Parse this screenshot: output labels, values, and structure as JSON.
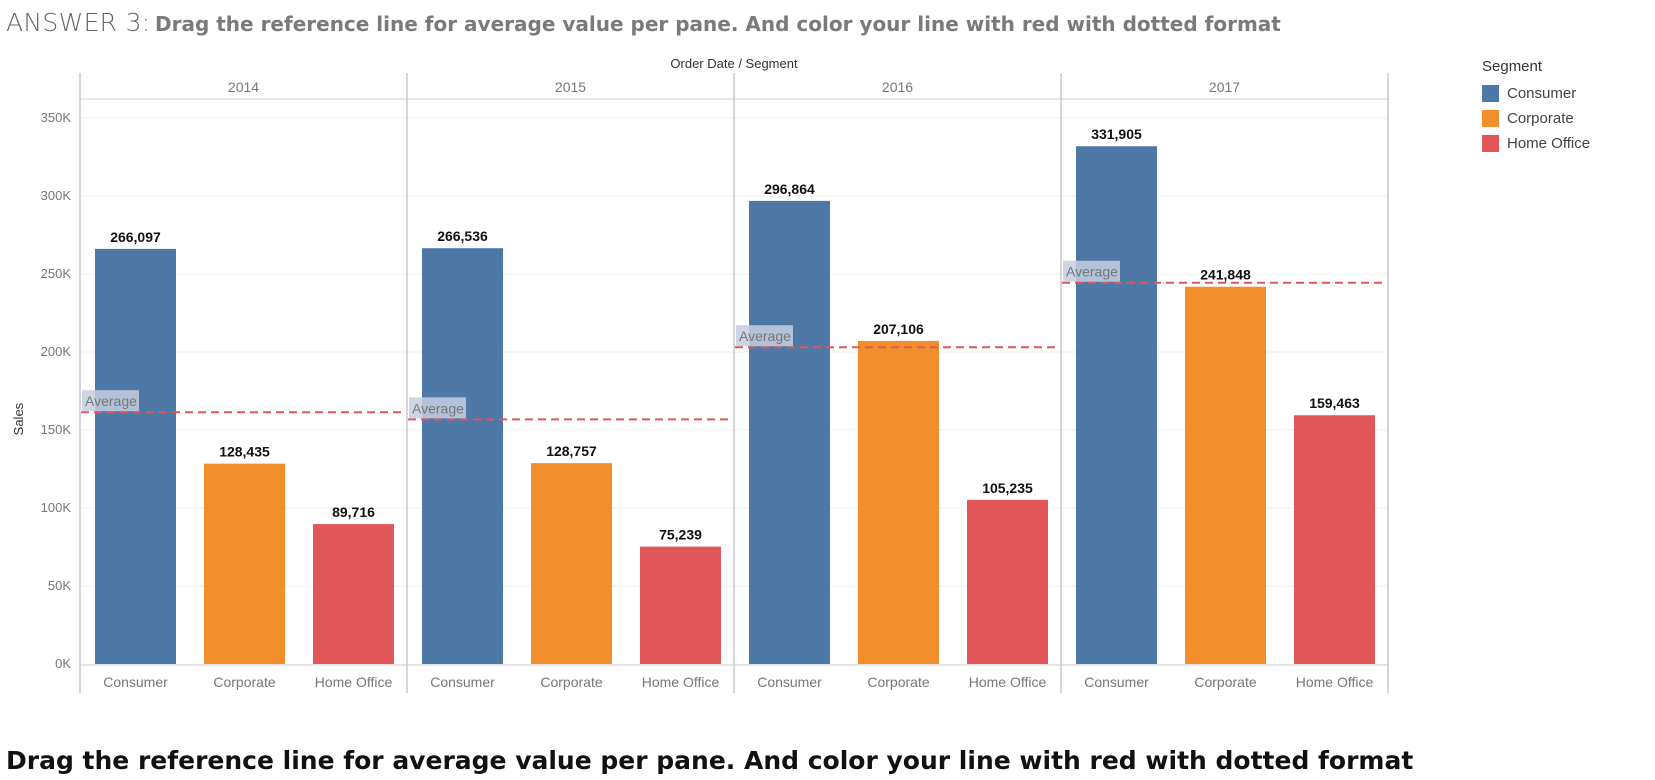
{
  "header": {
    "answer_label": "ANSWER 3:",
    "subtitle": "Drag the reference line for average value per pane. And color your line with red with dotted format"
  },
  "footer": {
    "text": "Drag the reference line for average value per pane. And color your line with red with dotted format"
  },
  "legend": {
    "title": "Segment",
    "items": [
      {
        "label": "Consumer",
        "color": "#4e79a7"
      },
      {
        "label": "Corporate",
        "color": "#f28e2b"
      },
      {
        "label": "Home Office",
        "color": "#e15759"
      }
    ]
  },
  "chart_data": {
    "type": "bar",
    "column_header": "Order Date / Segment",
    "ylabel": "Sales",
    "ylim": [
      0,
      350000
    ],
    "yticks": [
      "0K",
      "50K",
      "100K",
      "150K",
      "200K",
      "250K",
      "300K",
      "350K"
    ],
    "ytick_values": [
      0,
      50000,
      100000,
      150000,
      200000,
      250000,
      300000,
      350000
    ],
    "reference_line_label": "Average",
    "reference_line_color": "#e15759",
    "reference_line_style": "dotted",
    "panes": [
      {
        "year": "2014",
        "categories": [
          "Consumer",
          "Corporate",
          "Home Office"
        ],
        "values": [
          266097,
          128435,
          89716
        ],
        "labels": [
          "266,097",
          "128,435",
          "89,716"
        ],
        "average": 161416
      },
      {
        "year": "2015",
        "categories": [
          "Consumer",
          "Corporate",
          "Home Office"
        ],
        "values": [
          266536,
          128757,
          75239
        ],
        "labels": [
          "266,536",
          "128,757",
          "75,239"
        ],
        "average": 156844
      },
      {
        "year": "2016",
        "categories": [
          "Consumer",
          "Corporate",
          "Home Office"
        ],
        "values": [
          296864,
          207106,
          105235
        ],
        "labels": [
          "296,864",
          "207,106",
          "105,235"
        ],
        "average": 203068
      },
      {
        "year": "2017",
        "categories": [
          "Consumer",
          "Corporate",
          "Home Office"
        ],
        "values": [
          331905,
          241848,
          159463
        ],
        "labels": [
          "331,905",
          "241,848",
          "159,463"
        ],
        "average": 244405
      }
    ]
  }
}
